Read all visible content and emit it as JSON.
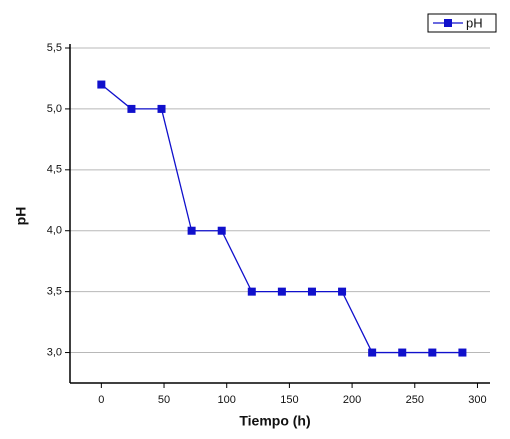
{
  "chart_data": {
    "type": "line",
    "x_label": "Tiempo  (h)",
    "y_label": "pH",
    "x": [
      0,
      24,
      48,
      72,
      96,
      120,
      144,
      168,
      192,
      216,
      240,
      264,
      288
    ],
    "series": [
      {
        "name": "pH",
        "color": "#1010cc",
        "values": [
          5.2,
          5.0,
          5.0,
          4.0,
          4.0,
          3.5,
          3.5,
          3.5,
          3.5,
          3.0,
          3.0,
          3.0,
          3.0
        ]
      }
    ],
    "xlim": [
      -25,
      310
    ],
    "xticks": [
      0,
      50,
      100,
      150,
      200,
      250,
      300
    ],
    "ylim": [
      2.75,
      5.5
    ],
    "yticks": [
      {
        "value": 3.0,
        "label": "3,0"
      },
      {
        "value": 3.5,
        "label": "3,5"
      },
      {
        "value": 4.0,
        "label": "4,0"
      },
      {
        "value": 4.5,
        "label": "4,5"
      },
      {
        "value": 5.0,
        "label": "5,0"
      },
      {
        "value": 5.5,
        "label": "5,5"
      }
    ],
    "grid": true,
    "legend": "upper right"
  }
}
